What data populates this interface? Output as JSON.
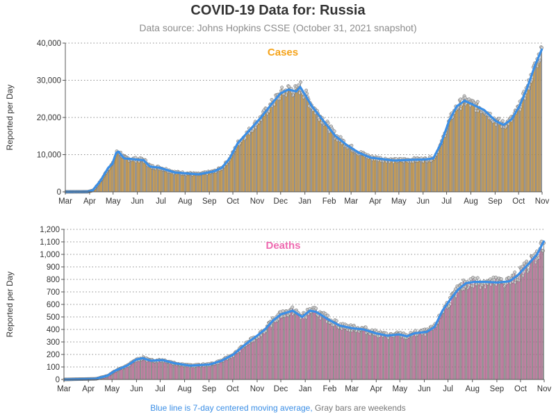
{
  "header": {
    "title": "COVID-19 Data for: Russia",
    "subtitle": "Data source: Johns Hopkins CSSE (October 31, 2021 snapshot)"
  },
  "footnote": {
    "moving_average": "Blue line is 7-day centered moving average,",
    "weekends": "Gray bars are weekends"
  },
  "colors": {
    "cases_bar": "#f5a31a",
    "cases_title": "#f5a31a",
    "deaths_bar": "#ee6ab0",
    "deaths_title": "#ee6ab0",
    "moving_average": "#3a8ee6",
    "weekend_bar": "#999999",
    "marker_fill": "#cccccc"
  },
  "chart_data": [
    {
      "type": "bar",
      "title": "Cases",
      "ylabel": "Reported per Day",
      "ylim": [
        0,
        40000
      ],
      "yticks": [
        0,
        10000,
        20000,
        30000,
        40000
      ],
      "ytick_labels": [
        "0",
        "10,000",
        "20,000",
        "30,000",
        "40,000"
      ],
      "xlim": [
        0,
        609
      ],
      "month_ticks": [
        "Mar",
        "Apr",
        "May",
        "Jun",
        "Jul",
        "Aug",
        "Sep",
        "Oct",
        "Nov",
        "Dec",
        "Jan",
        "Feb",
        "Mar",
        "Apr",
        "May",
        "Jun",
        "Jul",
        "Aug",
        "Sep",
        "Oct",
        "Nov"
      ],
      "month_day_offsets": [
        0,
        31,
        61,
        92,
        122,
        153,
        184,
        214,
        245,
        275,
        306,
        337,
        365,
        396,
        426,
        457,
        487,
        518,
        549,
        579,
        609
      ],
      "grid": true,
      "moving_average_knots": [
        [
          0,
          0
        ],
        [
          28,
          20
        ],
        [
          35,
          400
        ],
        [
          45,
          3000
        ],
        [
          55,
          6500
        ],
        [
          60,
          7500
        ],
        [
          65,
          10500
        ],
        [
          68,
          10800
        ],
        [
          75,
          9000
        ],
        [
          85,
          8800
        ],
        [
          100,
          8500
        ],
        [
          108,
          6800
        ],
        [
          120,
          6500
        ],
        [
          140,
          5200
        ],
        [
          170,
          4700
        ],
        [
          190,
          5500
        ],
        [
          200,
          6500
        ],
        [
          210,
          9000
        ],
        [
          220,
          13000
        ],
        [
          235,
          16500
        ],
        [
          250,
          20000
        ],
        [
          265,
          24000
        ],
        [
          275,
          26500
        ],
        [
          285,
          27500
        ],
        [
          295,
          27000
        ],
        [
          300,
          28200
        ],
        [
          305,
          26500
        ],
        [
          315,
          23000
        ],
        [
          330,
          19000
        ],
        [
          345,
          15000
        ],
        [
          360,
          12500
        ],
        [
          375,
          10500
        ],
        [
          390,
          9200
        ],
        [
          420,
          8400
        ],
        [
          440,
          8600
        ],
        [
          460,
          8700
        ],
        [
          470,
          9000
        ],
        [
          480,
          13000
        ],
        [
          490,
          19000
        ],
        [
          500,
          23000
        ],
        [
          510,
          24500
        ],
        [
          520,
          23500
        ],
        [
          535,
          22000
        ],
        [
          550,
          19000
        ],
        [
          560,
          18000
        ],
        [
          570,
          19500
        ],
        [
          580,
          23000
        ],
        [
          590,
          28000
        ],
        [
          600,
          34000
        ],
        [
          609,
          38500
        ]
      ]
    },
    {
      "type": "bar",
      "title": "Deaths",
      "ylabel": "Reported per Day",
      "ylim": [
        0,
        1200
      ],
      "yticks": [
        0,
        100,
        200,
        300,
        400,
        500,
        600,
        700,
        800,
        900,
        1000,
        1100,
        1200
      ],
      "ytick_labels": [
        "0",
        "100",
        "200",
        "300",
        "400",
        "500",
        "600",
        "700",
        "800",
        "900",
        "1,000",
        "1,100",
        "1,200"
      ],
      "xlim": [
        0,
        609
      ],
      "month_ticks": [
        "Mar",
        "Apr",
        "May",
        "Jun",
        "Jul",
        "Aug",
        "Sep",
        "Oct",
        "Nov",
        "Dec",
        "Jan",
        "Feb",
        "Mar",
        "Apr",
        "May",
        "Jun",
        "Jul",
        "Aug",
        "Sep",
        "Oct",
        "Nov"
      ],
      "month_day_offsets": [
        0,
        31,
        61,
        92,
        122,
        153,
        184,
        214,
        245,
        275,
        306,
        337,
        365,
        396,
        426,
        457,
        487,
        518,
        549,
        579,
        609
      ],
      "grid": true,
      "moving_average_knots": [
        [
          0,
          0
        ],
        [
          40,
          5
        ],
        [
          55,
          30
        ],
        [
          65,
          70
        ],
        [
          80,
          110
        ],
        [
          92,
          160
        ],
        [
          100,
          170
        ],
        [
          110,
          150
        ],
        [
          125,
          155
        ],
        [
          140,
          130
        ],
        [
          160,
          110
        ],
        [
          185,
          120
        ],
        [
          200,
          150
        ],
        [
          215,
          200
        ],
        [
          230,
          280
        ],
        [
          245,
          350
        ],
        [
          255,
          400
        ],
        [
          265,
          470
        ],
        [
          275,
          520
        ],
        [
          290,
          550
        ],
        [
          302,
          500
        ],
        [
          312,
          550
        ],
        [
          320,
          540
        ],
        [
          335,
          480
        ],
        [
          350,
          430
        ],
        [
          365,
          410
        ],
        [
          380,
          400
        ],
        [
          395,
          370
        ],
        [
          410,
          350
        ],
        [
          425,
          360
        ],
        [
          435,
          345
        ],
        [
          445,
          370
        ],
        [
          460,
          380
        ],
        [
          470,
          420
        ],
        [
          480,
          550
        ],
        [
          490,
          640
        ],
        [
          500,
          720
        ],
        [
          510,
          770
        ],
        [
          520,
          780
        ],
        [
          535,
          780
        ],
        [
          550,
          775
        ],
        [
          565,
          785
        ],
        [
          575,
          830
        ],
        [
          590,
          930
        ],
        [
          600,
          1000
        ],
        [
          609,
          1110
        ]
      ]
    }
  ]
}
